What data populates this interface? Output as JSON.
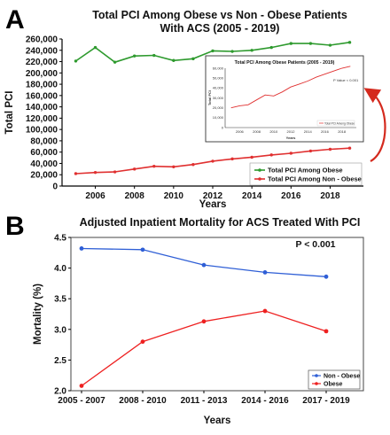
{
  "colors": {
    "obese": "#2e9a2e",
    "non_obese_A": "#e03030",
    "blue_B": "#2f5fd6",
    "red_B": "#ee2020",
    "arrow": "#d42a1e"
  },
  "panel_a": {
    "letter": "A",
    "title_line1": "Total PCI Among Obese vs Non - Obese Patients",
    "title_line2": "With ACS (2005 - 2019)"
  },
  "panel_b": {
    "letter": "B",
    "title": "Adjusted Inpatient Mortality for ACS Treated With PCI",
    "annotation": "P < 0.001"
  },
  "chart_data": [
    {
      "type": "line",
      "title": "Total PCI Among Obese vs Non - Obese Patients With ACS (2005 - 2019)",
      "xlabel": "Years",
      "ylabel": "Total PCI",
      "x": [
        2005,
        2006,
        2007,
        2008,
        2009,
        2010,
        2011,
        2012,
        2013,
        2014,
        2015,
        2016,
        2017,
        2018,
        2019
      ],
      "xticks": [
        2006,
        2008,
        2010,
        2012,
        2014,
        2016,
        2018
      ],
      "xlim": [
        2004.3,
        2019.7
      ],
      "ylim": [
        0,
        260000
      ],
      "yticks": [
        0,
        20000,
        40000,
        60000,
        80000,
        100000,
        120000,
        140000,
        160000,
        180000,
        200000,
        220000,
        240000,
        260000
      ],
      "series": [
        {
          "name": "Total PCI Among Obese",
          "color": "#2e9a2e",
          "values": [
            221000,
            245000,
            219000,
            230000,
            231000,
            222000,
            225000,
            239000,
            238000,
            240000,
            245000,
            252000,
            252000,
            249000,
            254000
          ]
        },
        {
          "name": "Total PCI Among Non - Obese",
          "color": "#e03030",
          "values": [
            22000,
            24000,
            25000,
            30000,
            35000,
            34000,
            38000,
            44000,
            48000,
            51000,
            55000,
            58000,
            62000,
            65000,
            67000
          ]
        }
      ],
      "legend_position": "bottom-right",
      "inset": {
        "type": "line",
        "title": "Total PCI Among Obese Patients (2005 - 2019)",
        "ylabel": "Total PCI",
        "xlabel": "Years",
        "annotation": "P Value < 0.001",
        "ylim": [
          0,
          60000
        ],
        "yticks": [
          0,
          10000,
          20000,
          30000,
          40000,
          50000,
          60000
        ],
        "x": [
          2005,
          2006,
          2007,
          2008,
          2009,
          2010,
          2011,
          2012,
          2013,
          2014,
          2015,
          2016,
          2017,
          2018,
          2019
        ],
        "xticks": [
          2006,
          2008,
          2010,
          2012,
          2014,
          2016,
          2018
        ],
        "series": [
          {
            "name": "Total PCI Among Obese",
            "color": "#e03030",
            "values": [
              20000,
              22000,
              23000,
              28000,
              33000,
              32000,
              36000,
              41000,
              44000,
              47000,
              51000,
              54000,
              57000,
              60000,
              62000
            ]
          }
        ]
      }
    },
    {
      "type": "line",
      "title": "Adjusted Inpatient Mortality for ACS Treated With PCI",
      "xlabel": "Years",
      "ylabel": "Mortality (%)",
      "categories": [
        "2005 - 2007",
        "2008 - 2010",
        "2011 - 2013",
        "2014 - 2016",
        "2017 - 2019"
      ],
      "ylim": [
        2.0,
        4.5
      ],
      "yticks": [
        "2.0",
        "2.5",
        "3.0",
        "3.5",
        "4.0",
        "4.5"
      ],
      "series": [
        {
          "name": "Non - Obese",
          "color": "#2f5fd6",
          "values": [
            4.32,
            4.3,
            4.05,
            3.93,
            3.86
          ]
        },
        {
          "name": "Obese",
          "color": "#ee2020",
          "values": [
            2.08,
            2.8,
            3.13,
            3.3,
            2.97
          ]
        }
      ],
      "legend_position": "bottom-right",
      "annotation": "P < 0.001"
    }
  ]
}
